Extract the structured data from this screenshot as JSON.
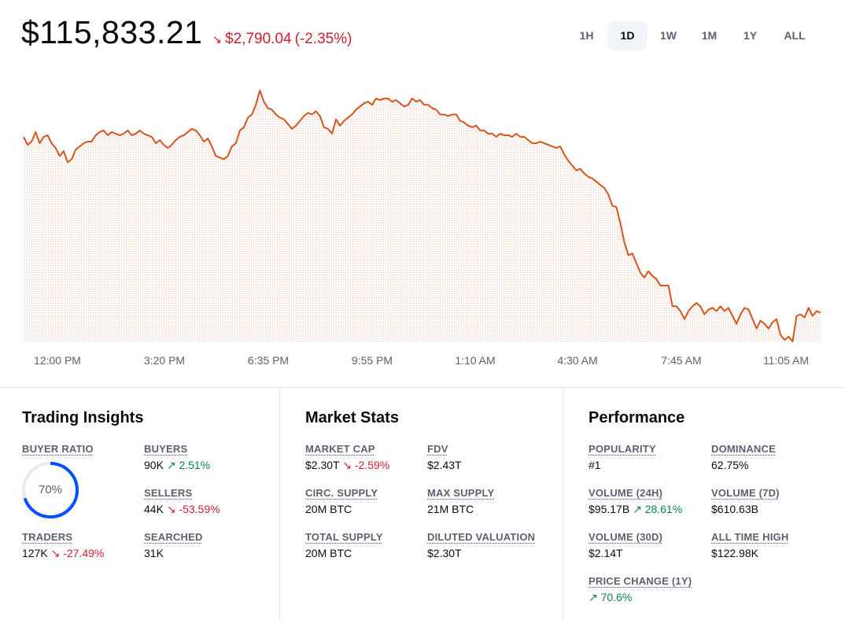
{
  "header": {
    "price": "$115,833.21",
    "change_arrow": "↘",
    "change_amount": "$2,790.04",
    "change_percent": "(-2.35%)"
  },
  "ranges": [
    {
      "label": "1H",
      "active": false
    },
    {
      "label": "1D",
      "active": true
    },
    {
      "label": "1W",
      "active": false
    },
    {
      "label": "1M",
      "active": false
    },
    {
      "label": "1Y",
      "active": false
    },
    {
      "label": "ALL",
      "active": false
    }
  ],
  "chart_data": {
    "type": "line",
    "line_color": "#d4541c",
    "fill_color": "#f8c9b4",
    "x_tick_labels": [
      "12:00 PM",
      "3:20 PM",
      "6:35 PM",
      "9:55 PM",
      "1:10 AM",
      "4:30 AM",
      "7:45 AM",
      "11:05 AM"
    ],
    "values": [
      116920,
      116870,
      116890,
      116950,
      116880,
      116920,
      116930,
      116880,
      116850,
      116800,
      116830,
      116760,
      116780,
      116840,
      116860,
      116880,
      116890,
      116890,
      116930,
      116950,
      116960,
      116930,
      116950,
      116940,
      116930,
      116940,
      116960,
      116930,
      116940,
      116960,
      116940,
      116930,
      116920,
      116880,
      116900,
      116870,
      116850,
      116870,
      116900,
      116920,
      116930,
      116950,
      116970,
      116960,
      116930,
      116890,
      116910,
      116860,
      116800,
      116790,
      116780,
      116800,
      116860,
      116880,
      116960,
      116980,
      117040,
      117060,
      117120,
      117210,
      117140,
      117100,
      117090,
      117060,
      117040,
      117030,
      117000,
      116970,
      116990,
      117020,
      117050,
      117070,
      117060,
      117080,
      117050,
      116980,
      116970,
      116940,
      117030,
      116990,
      117020,
      117040,
      117060,
      117090,
      117110,
      117130,
      117140,
      117120,
      117160,
      117150,
      117160,
      117160,
      117140,
      117150,
      117130,
      117110,
      117120,
      117160,
      117140,
      117150,
      117120,
      117120,
      117100,
      117090,
      117060,
      117060,
      117050,
      117060,
      117060,
      117020,
      117010,
      116990,
      116980,
      116990,
      116960,
      116960,
      116940,
      116940,
      116920,
      116940,
      116930,
      116930,
      116920,
      116940,
      116920,
      116920,
      116900,
      116880,
      116880,
      116890,
      116880,
      116870,
      116860,
      116850,
      116860,
      116810,
      116770,
      116740,
      116710,
      116720,
      116690,
      116670,
      116660,
      116640,
      116620,
      116600,
      116560,
      116490,
      116480,
      116380,
      116260,
      116180,
      116190,
      116130,
      116070,
      116040,
      116080,
      116050,
      116030,
      115990,
      115990,
      115990,
      115860,
      115860,
      115830,
      115780,
      115830,
      115860,
      115880,
      115860,
      115810,
      115840,
      115850,
      115830,
      115860,
      115830,
      115850,
      115800,
      115750,
      115810,
      115850,
      115840,
      115780,
      115720,
      115770,
      115750,
      115720,
      115760,
      115780,
      115680,
      115650,
      115670,
      115640,
      115800,
      115810,
      115790,
      115850,
      115800,
      115830,
      115820
    ]
  },
  "trading_insights": {
    "title": "Trading Insights",
    "buyer_ratio_label": "BUYER RATIO",
    "buyer_ratio_value": "70%",
    "buyer_ratio_fraction": 0.7,
    "buyers_label": "BUYERS",
    "buyers_value": "90K",
    "buyers_change_arrow": "↗",
    "buyers_change": "2.51%",
    "sellers_label": "SELLERS",
    "sellers_value": "44K",
    "sellers_change_arrow": "↘",
    "sellers_change": "-53.59%",
    "traders_label": "TRADERS",
    "traders_value": "127K",
    "traders_change_arrow": "↘",
    "traders_change": "-27.49%",
    "searched_label": "SEARCHED",
    "searched_value": "31K"
  },
  "market_stats": {
    "title": "Market Stats",
    "market_cap_label": "MARKET CAP",
    "market_cap_value": "$2.30T",
    "market_cap_change_arrow": "↘",
    "market_cap_change": "-2.59%",
    "fdv_label": "FDV",
    "fdv_value": "$2.43T",
    "circ_supply_label": "CIRC. SUPPLY",
    "circ_supply_value": "20M BTC",
    "max_supply_label": "MAX SUPPLY",
    "max_supply_value": "21M BTC",
    "total_supply_label": "TOTAL SUPPLY",
    "total_supply_value": "20M BTC",
    "diluted_label": "DILUTED VALUATION",
    "diluted_value": "$2.30T"
  },
  "performance": {
    "title": "Performance",
    "popularity_label": "POPULARITY",
    "popularity_value": "#1",
    "dominance_label": "DOMINANCE",
    "dominance_value": "62.75%",
    "volume24_label": "VOLUME (24H)",
    "volume24_value": "$95.17B",
    "volume24_change_arrow": "↗",
    "volume24_change": "28.61%",
    "volume7_label": "VOLUME (7D)",
    "volume7_value": "$610.63B",
    "volume30_label": "VOLUME (30D)",
    "volume30_value": "$2.14T",
    "ath_label": "ALL TIME HIGH",
    "ath_value": "$122.98K",
    "price_change_label": "PRICE CHANGE (1Y)",
    "price_change_arrow": "↗",
    "price_change_value": "70.6%"
  }
}
